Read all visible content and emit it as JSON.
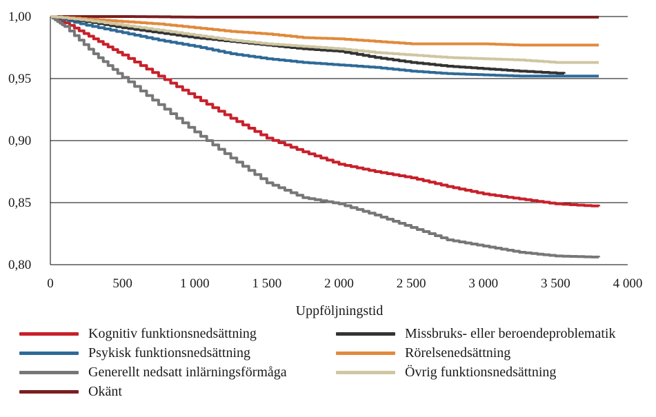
{
  "chart_data": {
    "type": "line",
    "xlabel": "Uppföljningstid",
    "ylabel": "",
    "xlim": [
      0,
      4000
    ],
    "ylim": [
      0.8,
      1.0
    ],
    "x_ticks": [
      "0",
      "500",
      "1 000",
      "1 500",
      "2 000",
      "2 500",
      "3 000",
      "3 500",
      "4 000"
    ],
    "y_ticks": [
      "0,80",
      "0,85",
      "0,90",
      "0,95",
      "1,00"
    ],
    "grid": "horizontal",
    "legend_position": "bottom",
    "series": [
      {
        "name": "Kognitiv funktionsnedsättning",
        "color": "#c8202a",
        "x": [
          0,
          100,
          300,
          500,
          750,
          1000,
          1250,
          1500,
          1750,
          2000,
          2250,
          2500,
          2750,
          3000,
          3250,
          3500,
          3800
        ],
        "y": [
          1.0,
          0.995,
          0.982,
          0.969,
          0.952,
          0.935,
          0.918,
          0.902,
          0.891,
          0.881,
          0.875,
          0.87,
          0.863,
          0.857,
          0.853,
          0.849,
          0.847
        ]
      },
      {
        "name": "Psykisk funktionsnedsättning",
        "color": "#2f6a97",
        "x": [
          0,
          250,
          500,
          750,
          1000,
          1250,
          1500,
          1750,
          2000,
          2250,
          2500,
          2750,
          3000,
          3250,
          3500,
          3800
        ],
        "y": [
          1.0,
          0.993,
          0.987,
          0.981,
          0.976,
          0.97,
          0.966,
          0.963,
          0.961,
          0.959,
          0.956,
          0.954,
          0.953,
          0.952,
          0.952,
          0.952
        ]
      },
      {
        "name": "Generellt nedsatt inlärningsförmåga",
        "color": "#777777",
        "x": [
          0,
          100,
          300,
          500,
          750,
          1000,
          1250,
          1500,
          1750,
          2000,
          2250,
          2500,
          2750,
          3000,
          3250,
          3500,
          3800
        ],
        "y": [
          1.0,
          0.992,
          0.97,
          0.951,
          0.929,
          0.907,
          0.886,
          0.866,
          0.854,
          0.849,
          0.84,
          0.83,
          0.82,
          0.815,
          0.81,
          0.807,
          0.806
        ]
      },
      {
        "name": "Okänt",
        "color": "#7a1e20",
        "x": [
          0,
          500,
          1000,
          1500,
          2000,
          2500,
          3000,
          3500,
          3800
        ],
        "y": [
          1.0,
          1.0,
          0.9995,
          0.9995,
          0.9995,
          0.9995,
          0.9995,
          0.9995,
          0.9995
        ]
      },
      {
        "name": "Missbruks- eller beroendeproblematik",
        "color": "#333333",
        "x": [
          0,
          250,
          500,
          750,
          1000,
          1250,
          1500,
          1750,
          2000,
          2250,
          2500,
          2750,
          3000,
          3250,
          3560
        ],
        "y": [
          1.0,
          0.996,
          0.991,
          0.987,
          0.983,
          0.98,
          0.977,
          0.974,
          0.972,
          0.967,
          0.963,
          0.96,
          0.958,
          0.956,
          0.954
        ]
      },
      {
        "name": "Rörelsenedsättning",
        "color": "#e08a3c",
        "x": [
          0,
          250,
          500,
          750,
          1000,
          1250,
          1500,
          1750,
          2000,
          2250,
          2500,
          2750,
          3000,
          3250,
          3500,
          3800
        ],
        "y": [
          1.0,
          0.998,
          0.996,
          0.994,
          0.991,
          0.988,
          0.986,
          0.983,
          0.982,
          0.98,
          0.978,
          0.978,
          0.978,
          0.977,
          0.977,
          0.977
        ]
      },
      {
        "name": "Övrig funktionsnedsättning",
        "color": "#cfc6a2",
        "x": [
          0,
          250,
          500,
          750,
          1000,
          1250,
          1500,
          1750,
          2000,
          2250,
          2500,
          2750,
          3000,
          3250,
          3500,
          3800
        ],
        "y": [
          1.0,
          0.997,
          0.993,
          0.989,
          0.985,
          0.981,
          0.978,
          0.976,
          0.974,
          0.971,
          0.969,
          0.967,
          0.966,
          0.965,
          0.963,
          0.963
        ]
      }
    ]
  }
}
